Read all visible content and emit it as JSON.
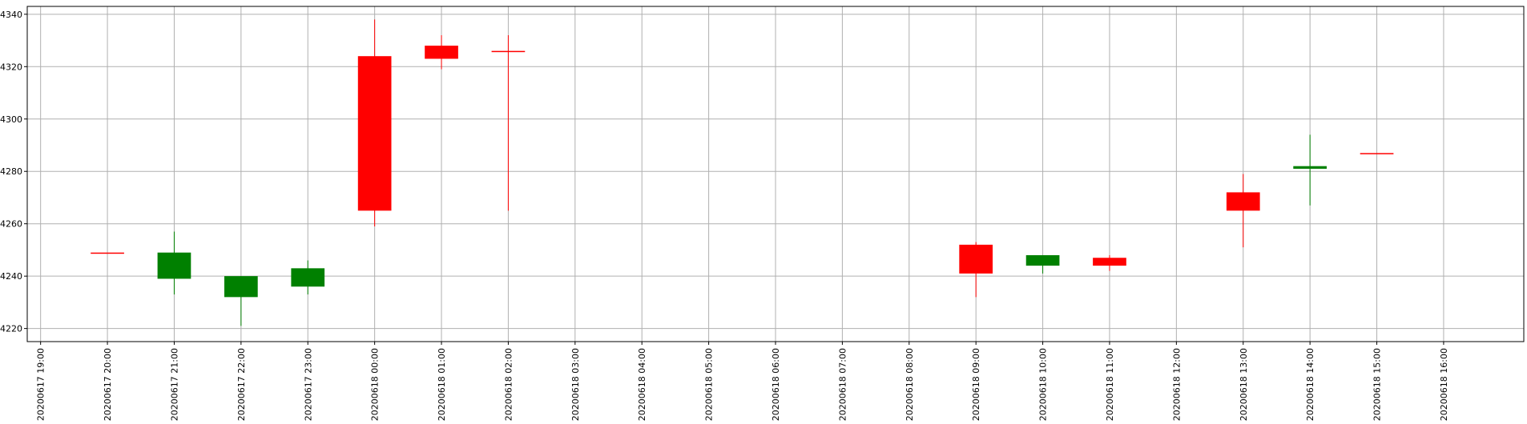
{
  "chart_data": {
    "type": "candlestick",
    "grid": true,
    "ylim": [
      4215,
      4343
    ],
    "yticks": [
      4220,
      4240,
      4260,
      4280,
      4300,
      4320,
      4340
    ],
    "ytick_labels": [
      "4220",
      "4240",
      "4260",
      "4280",
      "4300",
      "4320",
      "4340"
    ],
    "xlim_hours": [
      -1.2,
      21.2
    ],
    "xtick_labels": [
      "20200617 19:00",
      "20200617 20:00",
      "20200617 21:00",
      "20200617 22:00",
      "20200617 23:00",
      "20200618 00:00",
      "20200618 01:00",
      "20200618 02:00",
      "20200618 03:00",
      "20200618 04:00",
      "20200618 05:00",
      "20200618 06:00",
      "20200618 07:00",
      "20200618 08:00",
      "20200618 09:00",
      "20200618 10:00",
      "20200618 11:00",
      "20200618 12:00",
      "20200618 13:00",
      "20200618 14:00",
      "20200618 15:00",
      "20200618 16:00"
    ],
    "up_color": "#ff0000",
    "down_color": "#008000",
    "candles": [
      {
        "time": "20200617 20:00",
        "open": 4249,
        "close": 4249,
        "high": 4249,
        "low": 4249
      },
      {
        "time": "20200617 21:00",
        "open": 4249,
        "close": 4239,
        "high": 4257,
        "low": 4233
      },
      {
        "time": "20200617 22:00",
        "open": 4240,
        "close": 4232,
        "high": 4240,
        "low": 4221
      },
      {
        "time": "20200617 23:00",
        "open": 4243,
        "close": 4236,
        "high": 4246,
        "low": 4233
      },
      {
        "time": "20200618 00:00",
        "open": 4265,
        "close": 4324,
        "high": 4338,
        "low": 4259
      },
      {
        "time": "20200618 01:00",
        "open": 4323,
        "close": 4328,
        "high": 4332,
        "low": 4319
      },
      {
        "time": "20200618 02:00",
        "open": 4326,
        "close": 4326,
        "high": 4332,
        "low": 4265
      },
      {
        "time": "20200618 09:00",
        "open": 4241,
        "close": 4252,
        "high": 4253,
        "low": 4232
      },
      {
        "time": "20200618 10:00",
        "open": 4248,
        "close": 4244,
        "high": 4248,
        "low": 4241
      },
      {
        "time": "20200618 11:00",
        "open": 4244,
        "close": 4247,
        "high": 4248,
        "low": 4242
      },
      {
        "time": "20200618 13:00",
        "open": 4265,
        "close": 4272,
        "high": 4279,
        "low": 4251
      },
      {
        "time": "20200618 14:00",
        "open": 4282,
        "close": 4281,
        "high": 4294,
        "low": 4267
      },
      {
        "time": "20200618 15:00",
        "open": 4287,
        "close": 4287,
        "high": 4287,
        "low": 4287
      }
    ]
  }
}
